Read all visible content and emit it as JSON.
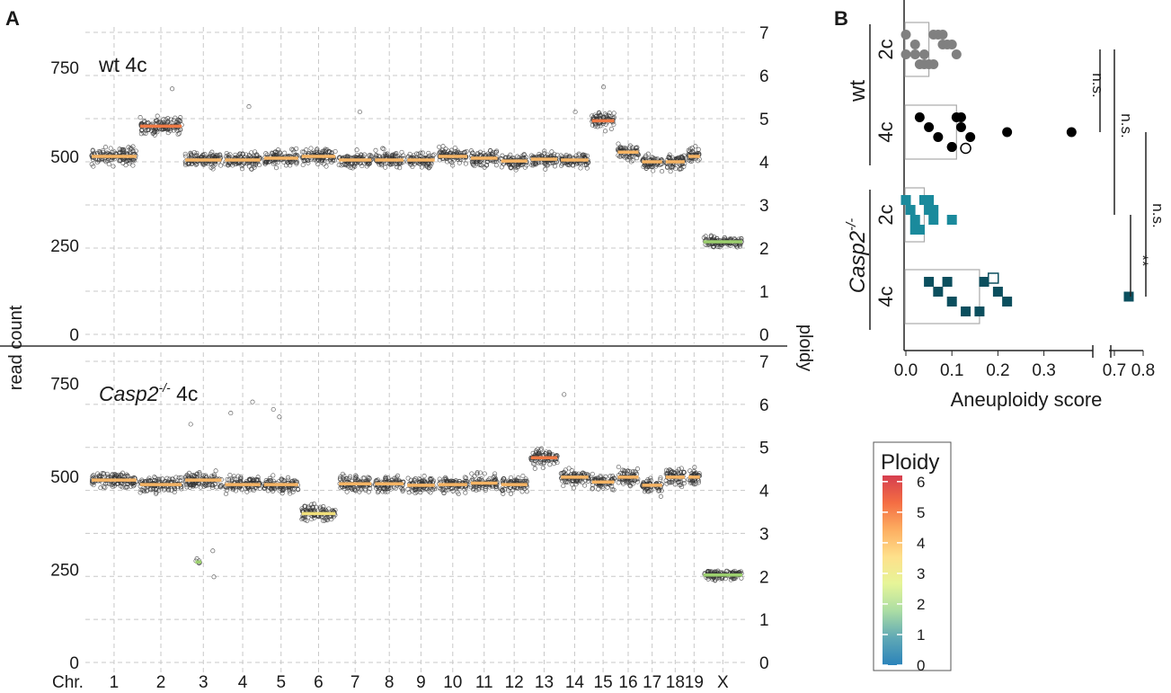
{
  "panel_labels": {
    "a": "A",
    "b": "B"
  },
  "chart_data": [
    {
      "type": "scatter",
      "subtype": "copy-number-genome-plot",
      "panel": "A",
      "ylabel_left": "read count",
      "ylabel_right": "ploidy",
      "xlabel": "Chr.",
      "ylim_left": [
        0,
        800
      ],
      "ylim_right": [
        0,
        7
      ],
      "left_ticks": [
        0,
        250,
        500,
        750
      ],
      "right_ticks": [
        0,
        1,
        2,
        3,
        4,
        5,
        6,
        7
      ],
      "grid": true,
      "categories": [
        "1",
        "2",
        "3",
        "4",
        "5",
        "6",
        "7",
        "8",
        "9",
        "10",
        "11",
        "12",
        "13",
        "14",
        "15",
        "16",
        "17",
        "18",
        "19",
        "X"
      ],
      "chromosome_sizes": [
        195,
        182,
        160,
        157,
        152,
        150,
        145,
        130,
        125,
        131,
        122,
        120,
        121,
        125,
        104,
        98,
        95,
        91,
        61,
        171
      ],
      "subplots": [
        {
          "label": "wt 4c",
          "label_parts": [
            "wt 4c",
            ""
          ],
          "segments": [
            {
              "chr": "1",
              "read_count": 500,
              "ploidy": 4
            },
            {
              "chr": "2",
              "read_count": 585,
              "ploidy": 5
            },
            {
              "chr": "3",
              "read_count": 490,
              "ploidy": 4
            },
            {
              "chr": "4",
              "read_count": 490,
              "ploidy": 4
            },
            {
              "chr": "5",
              "read_count": 495,
              "ploidy": 4
            },
            {
              "chr": "6",
              "read_count": 500,
              "ploidy": 4
            },
            {
              "chr": "7",
              "read_count": 490,
              "ploidy": 4
            },
            {
              "chr": "8",
              "read_count": 490,
              "ploidy": 4
            },
            {
              "chr": "9",
              "read_count": 490,
              "ploidy": 4
            },
            {
              "chr": "10",
              "read_count": 500,
              "ploidy": 4
            },
            {
              "chr": "11",
              "read_count": 495,
              "ploidy": 4
            },
            {
              "chr": "12",
              "read_count": 487,
              "ploidy": 4
            },
            {
              "chr": "13",
              "read_count": 492,
              "ploidy": 4
            },
            {
              "chr": "14",
              "read_count": 490,
              "ploidy": 4
            },
            {
              "chr": "15",
              "read_count": 600,
              "ploidy": 5
            },
            {
              "chr": "16",
              "read_count": 512,
              "ploidy": 4
            },
            {
              "chr": "17",
              "read_count": 485,
              "ploidy": 4
            },
            {
              "chr": "18",
              "read_count": 485,
              "ploidy": 4
            },
            {
              "chr": "19",
              "read_count": 500,
              "ploidy": 4
            },
            {
              "chr": "X",
              "read_count": 260,
              "ploidy": 2
            }
          ],
          "outliers": [
            {
              "chr": "2",
              "read_count": 690
            },
            {
              "chr": "4",
              "read_count": 640
            },
            {
              "chr": "14",
              "read_count": 625
            },
            {
              "chr": "15",
              "read_count": 695
            },
            {
              "chr": "7",
              "read_count": 625
            }
          ]
        },
        {
          "label": "Casp2-/- 4c",
          "label_parts": [
            "Casp2",
            "-/-",
            " 4c"
          ],
          "segments": [
            {
              "chr": "1",
              "read_count": 490,
              "ploidy": 4
            },
            {
              "chr": "2",
              "read_count": 478,
              "ploidy": 4
            },
            {
              "chr": "3",
              "read_count": 490,
              "ploidy": 4
            },
            {
              "chr": "4",
              "read_count": 478,
              "ploidy": 4
            },
            {
              "chr": "5",
              "read_count": 478,
              "ploidy": 4
            },
            {
              "chr": "6",
              "read_count": 400,
              "ploidy": 3
            },
            {
              "chr": "7",
              "read_count": 480,
              "ploidy": 4
            },
            {
              "chr": "8",
              "read_count": 480,
              "ploidy": 4
            },
            {
              "chr": "9",
              "read_count": 476,
              "ploidy": 4
            },
            {
              "chr": "10",
              "read_count": 478,
              "ploidy": 4
            },
            {
              "chr": "11",
              "read_count": 482,
              "ploidy": 4
            },
            {
              "chr": "12",
              "read_count": 478,
              "ploidy": 4
            },
            {
              "chr": "13",
              "read_count": 550,
              "ploidy": 5
            },
            {
              "chr": "14",
              "read_count": 498,
              "ploidy": 4
            },
            {
              "chr": "15",
              "read_count": 485,
              "ploidy": 4
            },
            {
              "chr": "16",
              "read_count": 498,
              "ploidy": 4
            },
            {
              "chr": "17",
              "read_count": 476,
              "ploidy": 4
            },
            {
              "chr": "18",
              "read_count": 498,
              "ploidy": 4
            },
            {
              "chr": "19",
              "read_count": 498,
              "ploidy": 4
            },
            {
              "chr": "X",
              "read_count": 235,
              "ploidy": 2
            }
          ],
          "subclonal": [
            {
              "chr": "3",
              "read_count": 270,
              "ploidy": 2,
              "span": [
                0.3,
                0.45
              ]
            }
          ],
          "outliers": [
            {
              "chr": "4",
              "read_count": 700
            },
            {
              "chr": "4",
              "read_count": 670
            },
            {
              "chr": "5",
              "read_count": 680
            },
            {
              "chr": "5",
              "read_count": 660
            },
            {
              "chr": "14",
              "read_count": 720
            },
            {
              "chr": "3",
              "read_count": 640
            },
            {
              "chr": "3",
              "read_count": 300
            },
            {
              "chr": "3",
              "read_count": 230
            }
          ]
        }
      ]
    },
    {
      "type": "scatter",
      "subtype": "bar-with-points",
      "panel": "B",
      "xlabel": "Aneuploidy score",
      "x_ticks_segment1": [
        "0.0",
        "0.1",
        "0.2",
        "0.3"
      ],
      "x_ticks_segment2": [
        "0.7",
        "0.8"
      ],
      "xlim_segment1": [
        0,
        0.38
      ],
      "xlim_segment2": [
        0.68,
        0.8
      ],
      "groups": [
        {
          "genotype": "wt",
          "genotype_italic": false,
          "rows": [
            {
              "label": "2c",
              "mean": 0.05,
              "color": "#808080",
              "marker": "circle",
              "points": [
                0.0,
                0.02,
                0.04,
                0.06,
                0.08,
                0.1,
                0.02,
                0.04,
                0.06,
                0.08,
                0.0,
                0.05,
                0.07,
                0.09,
                0.11,
                0.03
              ],
              "hollow_points": []
            },
            {
              "label": "4c",
              "mean": 0.11,
              "color": "#000000",
              "marker": "circle",
              "points": [
                0.03,
                0.05,
                0.07,
                0.1,
                0.11,
                0.12,
                0.14,
                0.1,
                0.12,
                0.22,
                0.36
              ],
              "hollow_points": [
                0.13
              ]
            }
          ]
        },
        {
          "genotype": "Casp2-/-",
          "genotype_parts": [
            "Casp2",
            "-/-"
          ],
          "genotype_italic": true,
          "rows": [
            {
              "label": "2c",
              "mean": 0.04,
              "color": "#1a8a9c",
              "marker": "square",
              "points": [
                0.0,
                0.01,
                0.02,
                0.03,
                0.04,
                0.05,
                0.06,
                0.02,
                0.04,
                0.06,
                0.1,
                0.03,
                0.05
              ],
              "hollow_points": []
            },
            {
              "label": "4c",
              "mean": 0.16,
              "color": "#0b4f5e",
              "marker": "square",
              "points": [
                0.05,
                0.07,
                0.1,
                0.13,
                0.17,
                0.2,
                0.22,
                0.16,
                0.09,
                0.75
              ],
              "hollow_points": [
                0.19
              ]
            }
          ]
        }
      ],
      "significance": [
        {
          "label": "n.s.",
          "between": "wt 2c vs wt 4c"
        },
        {
          "label": "n.s.",
          "between": "wt 4c vs Casp2-/- 2c"
        },
        {
          "label": "n.s.",
          "between": "wt 4c vs Casp2-/- 4c"
        },
        {
          "label": "**",
          "between": "Casp2-/- 2c vs Casp2-/- 4c"
        }
      ]
    },
    {
      "type": "colorbar",
      "title": "Ploidy",
      "ticks": [
        "0",
        "1",
        "2",
        "3",
        "4",
        "5",
        "6"
      ],
      "range": [
        0,
        6.2
      ],
      "colors": [
        "#2b83ba",
        "#5fa8b5",
        "#abdda4",
        "#e6f598",
        "#fee08b",
        "#fdae61",
        "#f46d43",
        "#d53e4f"
      ]
    }
  ]
}
